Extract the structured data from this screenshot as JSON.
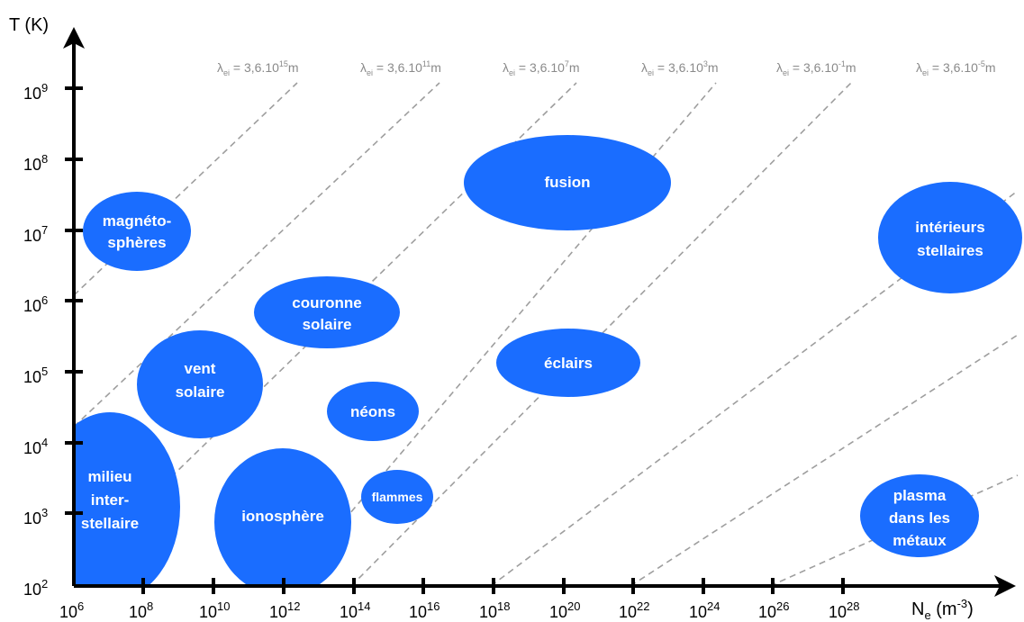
{
  "axes": {
    "y_label": "T (K)",
    "x_label": "N",
    "x_label_sub": "e",
    "x_label_unit_open": " (m",
    "x_label_unit_exp": "-3",
    "x_label_unit_close": ")",
    "x_ticks": [
      {
        "base": "10",
        "exp": "6"
      },
      {
        "base": "10",
        "exp": "8"
      },
      {
        "base": "10",
        "exp": "10"
      },
      {
        "base": "10",
        "exp": "12"
      },
      {
        "base": "10",
        "exp": "14"
      },
      {
        "base": "10",
        "exp": "16"
      },
      {
        "base": "10",
        "exp": "18"
      },
      {
        "base": "10",
        "exp": "20"
      },
      {
        "base": "10",
        "exp": "22"
      },
      {
        "base": "10",
        "exp": "24"
      },
      {
        "base": "10",
        "exp": "26"
      },
      {
        "base": "10",
        "exp": "28"
      }
    ],
    "y_ticks": [
      {
        "base": "10",
        "exp": "2"
      },
      {
        "base": "10",
        "exp": "3"
      },
      {
        "base": "10",
        "exp": "4"
      },
      {
        "base": "10",
        "exp": "5"
      },
      {
        "base": "10",
        "exp": "6"
      },
      {
        "base": "10",
        "exp": "7"
      },
      {
        "base": "10",
        "exp": "8"
      },
      {
        "base": "10",
        "exp": "9"
      }
    ]
  },
  "isolines": [
    {
      "symbol": "λ",
      "sub": "ei",
      "mid": " = 3,6.10",
      "exp": "15",
      "unit": "m"
    },
    {
      "symbol": "λ",
      "sub": "ei",
      "mid": " = 3,6.10",
      "exp": "11",
      "unit": "m"
    },
    {
      "symbol": "λ",
      "sub": "ei",
      "mid": " = 3,6.10",
      "exp": "7",
      "unit": "m"
    },
    {
      "symbol": "λ",
      "sub": "ei",
      "mid": " = 3,6.10",
      "exp": "3",
      "unit": "m"
    },
    {
      "symbol": "λ",
      "sub": "ei",
      "mid": " = 3,6.10",
      "exp": "-1",
      "unit": "m"
    },
    {
      "symbol": "λ",
      "sub": "ei",
      "mid": " = 3,6.10",
      "exp": "-5",
      "unit": "m"
    }
  ],
  "regions": [
    {
      "name": "milieu-interstellaire",
      "lines": [
        "milieu",
        "inter-",
        "stellaire"
      ]
    },
    {
      "name": "ionosphere",
      "lines": [
        "ionosphère"
      ]
    },
    {
      "name": "flammes",
      "lines": [
        "flammes"
      ]
    },
    {
      "name": "vent-solaire",
      "lines": [
        "vent",
        "solaire"
      ]
    },
    {
      "name": "neons",
      "lines": [
        "néons"
      ]
    },
    {
      "name": "couronne-solaire",
      "lines": [
        "couronne",
        "solaire"
      ]
    },
    {
      "name": "magnetospheres",
      "lines": [
        "magnéto-",
        "sphères"
      ]
    },
    {
      "name": "fusion",
      "lines": [
        "fusion"
      ]
    },
    {
      "name": "eclairs",
      "lines": [
        "éclairs"
      ]
    },
    {
      "name": "interieurs-stellaires",
      "lines": [
        "intérieurs",
        "stellaires"
      ]
    },
    {
      "name": "plasma-dans-les-metaux",
      "lines": [
        "plasma",
        "dans les",
        "métaux"
      ]
    }
  ],
  "colors": {
    "region_fill": "#1a6dff",
    "axis": "#000000",
    "isoline": "#9e9e9e"
  }
}
